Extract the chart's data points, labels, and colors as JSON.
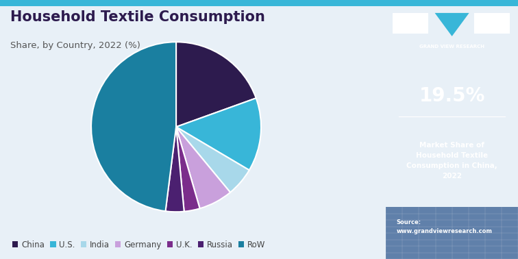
{
  "title": "Household Textile Consumption",
  "subtitle": "Share, by Country, 2022 (%)",
  "labels": [
    "China",
    "U.S.",
    "India",
    "Germany",
    "U.K.",
    "Russia",
    "RoW"
  ],
  "values": [
    19.5,
    14.0,
    5.5,
    6.5,
    3.0,
    3.5,
    48.0
  ],
  "colors": [
    "#2d1b4e",
    "#38b6d8",
    "#a8d8ea",
    "#c9a0dc",
    "#7b2d8b",
    "#4b2070",
    "#1a7fa0"
  ],
  "startangle": 90,
  "bg_color": "#e8f0f7",
  "right_panel_color": "#2e2060",
  "right_panel_pct": "19.5%",
  "right_panel_text": "Market Share of\nHousehold Textile\nConsumption in China,\n2022",
  "source_text": "Source:\nwww.grandviewresearch.com",
  "legend_labels": [
    "China",
    "U.S.",
    "India",
    "Germany",
    "U.K.",
    "Russia",
    "RoW"
  ],
  "top_bar_color": "#38b6d8",
  "logo_text": "GRAND VIEW RESEARCH",
  "title_color": "#2d1b4e",
  "subtitle_color": "#555555"
}
